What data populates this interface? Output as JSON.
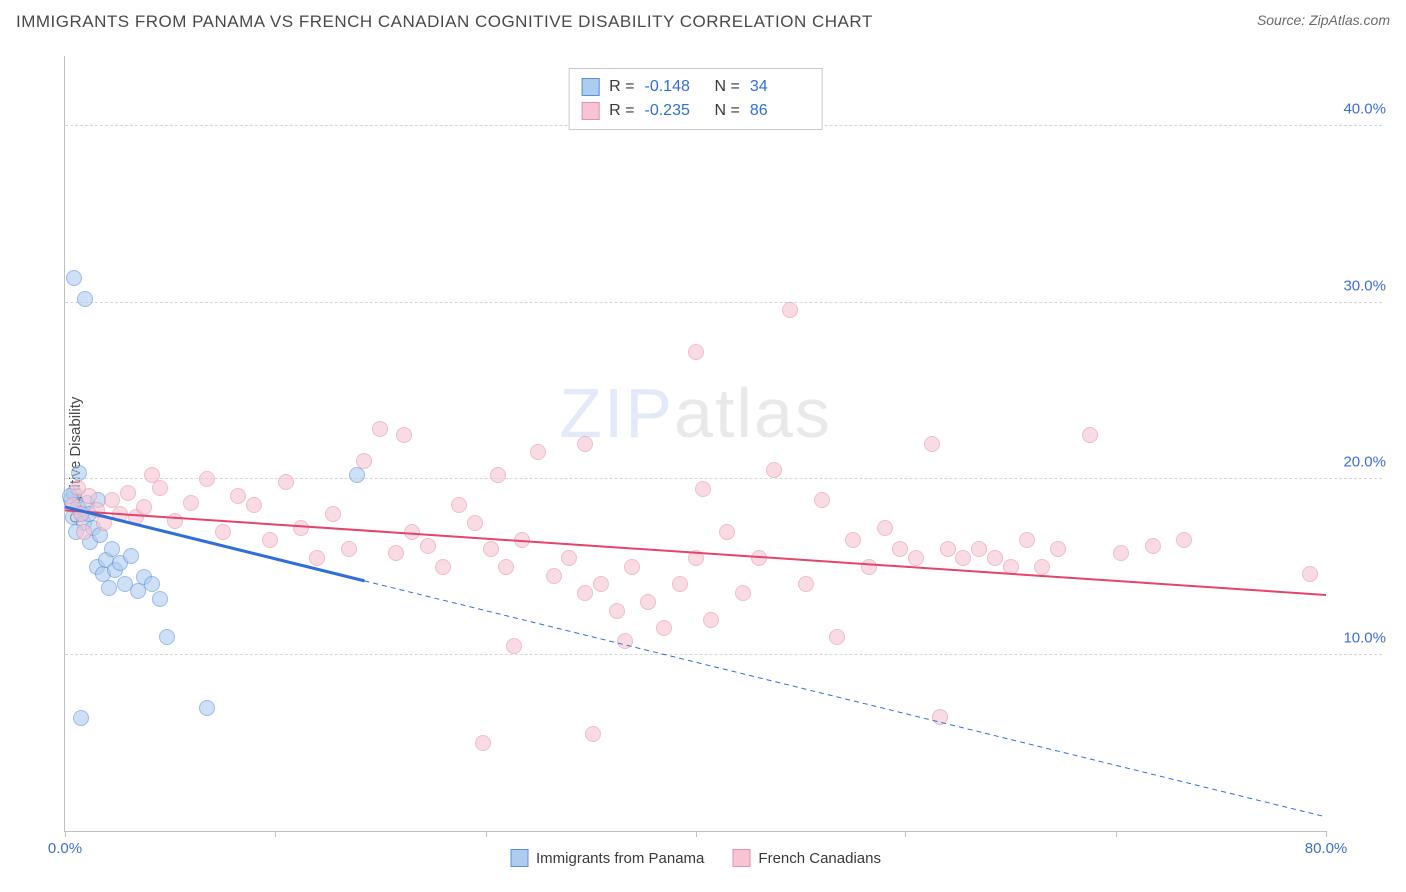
{
  "title": "IMMIGRANTS FROM PANAMA VS FRENCH CANADIAN COGNITIVE DISABILITY CORRELATION CHART",
  "source_label": "Source: ZipAtlas.com",
  "ylabel": "Cognitive Disability",
  "watermark_a": "ZIP",
  "watermark_b": "atlas",
  "chart": {
    "type": "scatter",
    "xlim": [
      0,
      80
    ],
    "ylim": [
      0,
      44
    ],
    "x_ticks": [
      0,
      13.3,
      26.7,
      40,
      53.3,
      66.7,
      80
    ],
    "x_tick_labels": [
      "0.0%",
      "",
      "",
      "",
      "",
      "",
      "80.0%"
    ],
    "y_gridlines": [
      10,
      20,
      30,
      40
    ],
    "y_tick_labels": [
      "10.0%",
      "20.0%",
      "30.0%",
      "40.0%"
    ],
    "background_color": "#ffffff",
    "grid_color": "#d6d6d6",
    "axis_color": "#bfbfbf",
    "label_color": "#3a6fd8",
    "marker_radius": 8,
    "marker_opacity": 0.6,
    "series": [
      {
        "name": "Immigrants from Panama",
        "fill": "#aeccf0",
        "stroke": "#5a8fd6",
        "trend_color": "#2f6fd8",
        "trend_width": 3,
        "trend": {
          "x1": 0,
          "y1": 18.4,
          "x2": 19,
          "y2": 14.2,
          "x2_dash": 80,
          "y2_dash": 0.8
        },
        "R": "-0.148",
        "N": "34",
        "points": [
          [
            0.4,
            18.8
          ],
          [
            0.5,
            17.8
          ],
          [
            0.6,
            19.2
          ],
          [
            0.8,
            18.4
          ],
          [
            0.9,
            20.3
          ],
          [
            1.1,
            18.0
          ],
          [
            1.2,
            17.5
          ],
          [
            1.4,
            18.6
          ],
          [
            1.6,
            16.4
          ],
          [
            1.8,
            17.2
          ],
          [
            2.0,
            15.0
          ],
          [
            2.2,
            16.8
          ],
          [
            2.4,
            14.6
          ],
          [
            2.6,
            15.4
          ],
          [
            2.8,
            13.8
          ],
          [
            3.0,
            16.0
          ],
          [
            3.2,
            14.8
          ],
          [
            3.5,
            15.2
          ],
          [
            3.8,
            14.0
          ],
          [
            4.2,
            15.6
          ],
          [
            4.6,
            13.6
          ],
          [
            5.0,
            14.4
          ],
          [
            5.5,
            14.0
          ],
          [
            6.0,
            13.2
          ],
          [
            0.6,
            31.4
          ],
          [
            1.3,
            30.2
          ],
          [
            1.0,
            6.4
          ],
          [
            6.5,
            11.0
          ],
          [
            9.0,
            7.0
          ],
          [
            1.5,
            18.0
          ],
          [
            0.7,
            17.0
          ],
          [
            18.5,
            20.2
          ],
          [
            2.1,
            18.8
          ],
          [
            0.3,
            19.0
          ]
        ]
      },
      {
        "name": "French Canadians",
        "fill": "#f6c4d2",
        "stroke": "#e890aa",
        "trend_color": "#e5446d",
        "trend_width": 2,
        "trend": {
          "x1": 0,
          "y1": 18.2,
          "x2": 80,
          "y2": 13.4
        },
        "R": "-0.235",
        "N": "86",
        "points": [
          [
            0.5,
            18.5
          ],
          [
            1.0,
            18.0
          ],
          [
            1.5,
            19.0
          ],
          [
            2.0,
            18.2
          ],
          [
            2.5,
            17.5
          ],
          [
            3.0,
            18.8
          ],
          [
            3.5,
            18.0
          ],
          [
            4.0,
            19.2
          ],
          [
            4.5,
            17.8
          ],
          [
            5.0,
            18.4
          ],
          [
            6.0,
            19.5
          ],
          [
            7.0,
            17.6
          ],
          [
            8.0,
            18.6
          ],
          [
            9.0,
            20.0
          ],
          [
            10.0,
            17.0
          ],
          [
            11.0,
            19.0
          ],
          [
            12.0,
            18.5
          ],
          [
            13.0,
            16.5
          ],
          [
            14.0,
            19.8
          ],
          [
            15.0,
            17.2
          ],
          [
            16.0,
            15.5
          ],
          [
            17.0,
            18.0
          ],
          [
            18.0,
            16.0
          ],
          [
            19.0,
            21.0
          ],
          [
            20.0,
            22.8
          ],
          [
            21.0,
            15.8
          ],
          [
            22.0,
            17.0
          ],
          [
            23.0,
            16.2
          ],
          [
            24.0,
            15.0
          ],
          [
            25.0,
            18.5
          ],
          [
            26.0,
            17.5
          ],
          [
            27.0,
            16.0
          ],
          [
            27.5,
            20.2
          ],
          [
            28.0,
            15.0
          ],
          [
            29.0,
            16.5
          ],
          [
            30.0,
            21.5
          ],
          [
            31.0,
            14.5
          ],
          [
            32.0,
            15.5
          ],
          [
            33.0,
            13.5
          ],
          [
            34.0,
            14.0
          ],
          [
            35.0,
            12.5
          ],
          [
            36.0,
            15.0
          ],
          [
            37.0,
            13.0
          ],
          [
            38.0,
            11.5
          ],
          [
            39.0,
            14.0
          ],
          [
            40.0,
            15.5
          ],
          [
            41.0,
            12.0
          ],
          [
            42.0,
            17.0
          ],
          [
            43.0,
            13.5
          ],
          [
            44.0,
            15.5
          ],
          [
            45.0,
            20.5
          ],
          [
            46.0,
            29.6
          ],
          [
            47.0,
            14.0
          ],
          [
            48.0,
            18.8
          ],
          [
            49.0,
            11.0
          ],
          [
            50.0,
            16.5
          ],
          [
            51.0,
            15.0
          ],
          [
            52.0,
            17.2
          ],
          [
            53.0,
            16.0
          ],
          [
            54.0,
            15.5
          ],
          [
            55.0,
            22.0
          ],
          [
            56.0,
            16.0
          ],
          [
            57.0,
            15.5
          ],
          [
            58.0,
            16.0
          ],
          [
            59.0,
            15.5
          ],
          [
            60.0,
            15.0
          ],
          [
            61.0,
            16.5
          ],
          [
            62.0,
            15.0
          ],
          [
            63.0,
            16.0
          ],
          [
            65.0,
            22.5
          ],
          [
            67.0,
            15.8
          ],
          [
            69.0,
            16.2
          ],
          [
            71.0,
            16.5
          ],
          [
            79.0,
            14.6
          ],
          [
            55.5,
            6.5
          ],
          [
            26.5,
            5.0
          ],
          [
            33.5,
            5.5
          ],
          [
            35.5,
            10.8
          ],
          [
            28.5,
            10.5
          ],
          [
            40.5,
            19.4
          ],
          [
            40.0,
            27.2
          ],
          [
            33.0,
            22.0
          ],
          [
            21.5,
            22.5
          ],
          [
            5.5,
            20.2
          ],
          [
            0.8,
            19.5
          ],
          [
            1.2,
            17.0
          ]
        ]
      }
    ]
  },
  "legend": {
    "series1_label": "Immigrants from Panama",
    "series2_label": "French Canadians"
  }
}
